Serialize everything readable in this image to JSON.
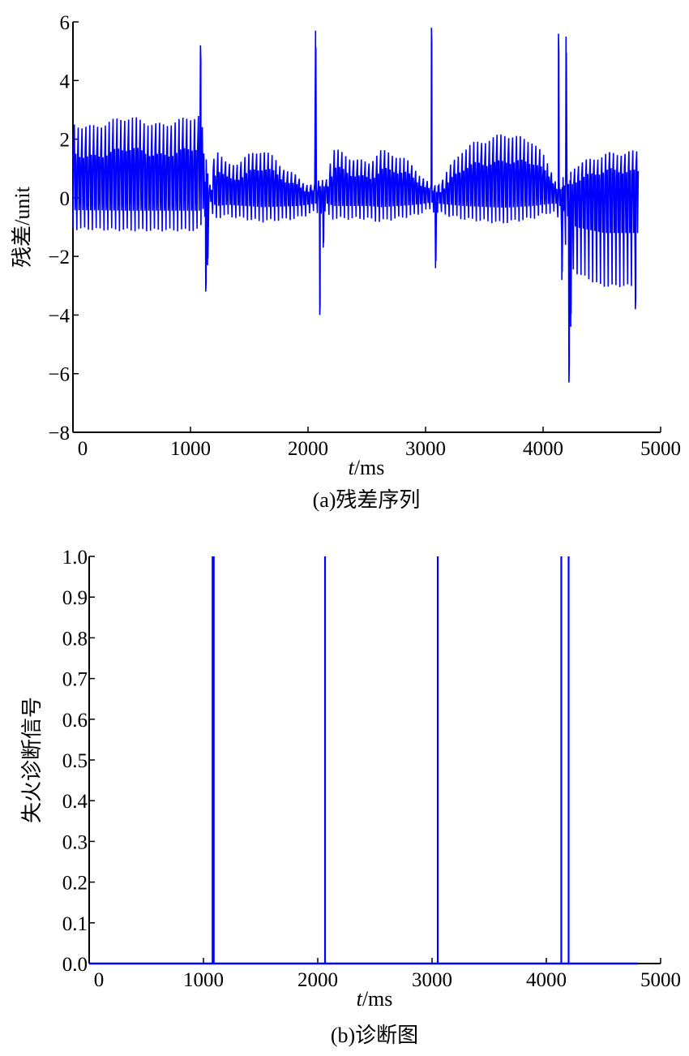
{
  "chart_data": [
    {
      "type": "line",
      "caption": "(a)残差序列",
      "xlabel_italic": "t",
      "xlabel_unit": "/ms",
      "ylabel": "残差/unit",
      "xlim": [
        0,
        5000
      ],
      "ylim": [
        -8,
        6
      ],
      "xticks": [
        "0",
        "1000",
        "2000",
        "3000",
        "4000",
        "5000"
      ],
      "yticks": [
        "−8",
        "−6",
        "−4",
        "−2",
        "0",
        "2",
        "4",
        "6"
      ],
      "grid": false,
      "line_color": "#0000ff",
      "oscillation_period_ms": 33,
      "envelope": {
        "t": [
          0,
          500,
          1000,
          1075,
          1150,
          1200,
          1300,
          1600,
          1900,
          2040,
          2150,
          2200,
          2500,
          2600,
          2900,
          3030,
          3100,
          3300,
          3650,
          3900,
          4050,
          4110,
          4260,
          4500,
          4790
        ],
        "upper": [
          2.5,
          2.6,
          2.6,
          2.7,
          0.3,
          1.8,
          1.2,
          1.5,
          0.8,
          0.4,
          0.6,
          1.5,
          1.3,
          1.6,
          1.0,
          0.5,
          0.6,
          1.5,
          2.3,
          1.8,
          1.0,
          0.5,
          1.2,
          1.3,
          1.7
        ],
        "lower": [
          -1.05,
          -1.1,
          -1.1,
          -1.1,
          -0.3,
          -0.7,
          -0.6,
          -0.8,
          -0.7,
          -0.5,
          -0.5,
          -0.7,
          -0.7,
          -0.8,
          -0.6,
          -0.4,
          -0.5,
          -0.7,
          -0.85,
          -0.7,
          -0.5,
          -0.5,
          -2.5,
          -3.0,
          -3.0
        ]
      },
      "spikes": [
        {
          "t": 1085,
          "value": 5.2
        },
        {
          "t": 1130,
          "value": -3.2
        },
        {
          "t": 1145,
          "value": -2.3
        },
        {
          "t": 2064,
          "value": 5.7
        },
        {
          "t": 2100,
          "value": -4.0
        },
        {
          "t": 2130,
          "value": -1.7
        },
        {
          "t": 3050,
          "value": 5.8
        },
        {
          "t": 3085,
          "value": -2.4
        },
        {
          "t": 4131,
          "value": 5.6
        },
        {
          "t": 4160,
          "value": -2.8
        },
        {
          "t": 4195,
          "value": 5.5
        },
        {
          "t": 4220,
          "value": -6.3
        },
        {
          "t": 4235,
          "value": -4.4
        },
        {
          "t": 4785,
          "value": -3.8
        }
      ]
    },
    {
      "type": "line",
      "caption": "(b)诊断图",
      "xlabel_italic": "t",
      "xlabel_unit": "/ms",
      "ylabel": "失火诊断信号",
      "xlim": [
        0,
        5000
      ],
      "ylim": [
        0,
        1
      ],
      "xticks": [
        "0",
        "1000",
        "2000",
        "3000",
        "4000",
        "5000"
      ],
      "yticks": [
        "0.0",
        "0.1",
        "0.2",
        "0.3",
        "0.4",
        "0.5",
        "0.6",
        "0.7",
        "0.8",
        "0.9",
        "1.0"
      ],
      "grid": false,
      "line_color": "#0000ff",
      "x_end": 4800,
      "pulses_t": [
        1080,
        1090,
        2064,
        3050,
        4131,
        4195
      ],
      "baseline": 0,
      "pulse_value": 1
    }
  ]
}
